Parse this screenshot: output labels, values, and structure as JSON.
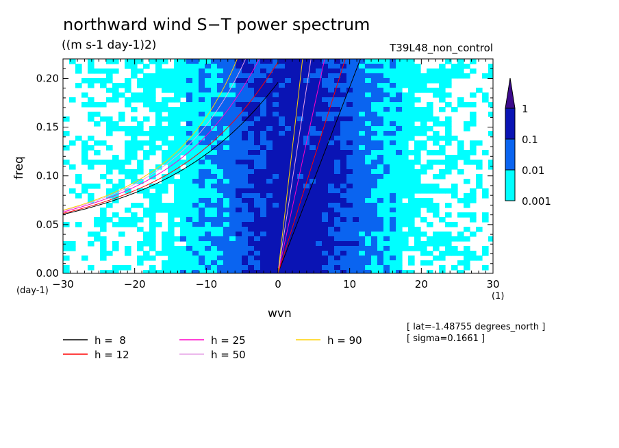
{
  "title": "northward wind S−T power spectrum",
  "units": "((m s-1 day-1)2)",
  "run_name": "T39L48_non_control",
  "info": [
    "[ lat=-1.48755 degrees_north ]",
    "[ sigma=0.1661 ]"
  ],
  "chart_data": {
    "type": "heatmap",
    "title": "northward wind S−T power spectrum",
    "xlabel": "wvn",
    "ylabel": "freq",
    "xunit": "(1)",
    "yunit": "(day-1)",
    "xlim": [
      -30,
      30
    ],
    "ylim": [
      0,
      0.22
    ],
    "xticks": [
      -30,
      -20,
      -10,
      0,
      10,
      20,
      30
    ],
    "xtick_labels": [
      "−30",
      "−20",
      "−10",
      "0",
      "10",
      "20",
      "30"
    ],
    "yticks": [
      0,
      0.05,
      0.1,
      0.15,
      0.2
    ],
    "ytick_labels": [
      "0.00",
      "0.05",
      "0.10",
      "0.15",
      "0.20"
    ],
    "colorbar": {
      "levels": [
        0.001,
        0.01,
        0.1,
        1
      ],
      "labels": [
        "0.001",
        "0.01",
        "0.1",
        "1"
      ],
      "colors": [
        "#00ffff",
        "#0a64f0",
        "#0a14b4",
        "#3c0a8c"
      ]
    },
    "series": [
      {
        "name": "h =  8",
        "color": "#000000"
      },
      {
        "name": "h = 12",
        "color": "#ff0000"
      },
      {
        "name": "h = 25",
        "color": "#ff00c8"
      },
      {
        "name": "h = 50",
        "color": "#e6a0e6"
      },
      {
        "name": "h = 90",
        "color": "#ffd200"
      }
    ],
    "legend_placement": "below"
  }
}
